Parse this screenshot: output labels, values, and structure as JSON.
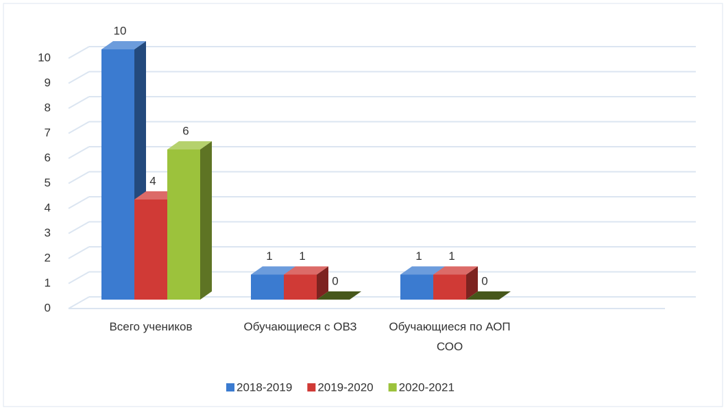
{
  "chart_data": {
    "type": "bar3d",
    "categories": [
      "Всего учеников",
      "Обучающиеся  с ОВЗ",
      "Обучающиеся по АОП СОО"
    ],
    "series": [
      {
        "name": "2018-2019",
        "color": "#3b7bd0",
        "values": [
          10,
          1,
          1
        ]
      },
      {
        "name": "2019-2020",
        "color": "#d03a36",
        "values": [
          4,
          1,
          1
        ]
      },
      {
        "name": "2020-2021",
        "color": "#9cc23c",
        "values": [
          6,
          0,
          0
        ]
      }
    ],
    "ylim": [
      0,
      10
    ],
    "yticks": [
      0,
      1,
      2,
      3,
      4,
      5,
      6,
      7,
      8,
      9,
      10
    ],
    "grid": true,
    "legend": "bottom"
  }
}
